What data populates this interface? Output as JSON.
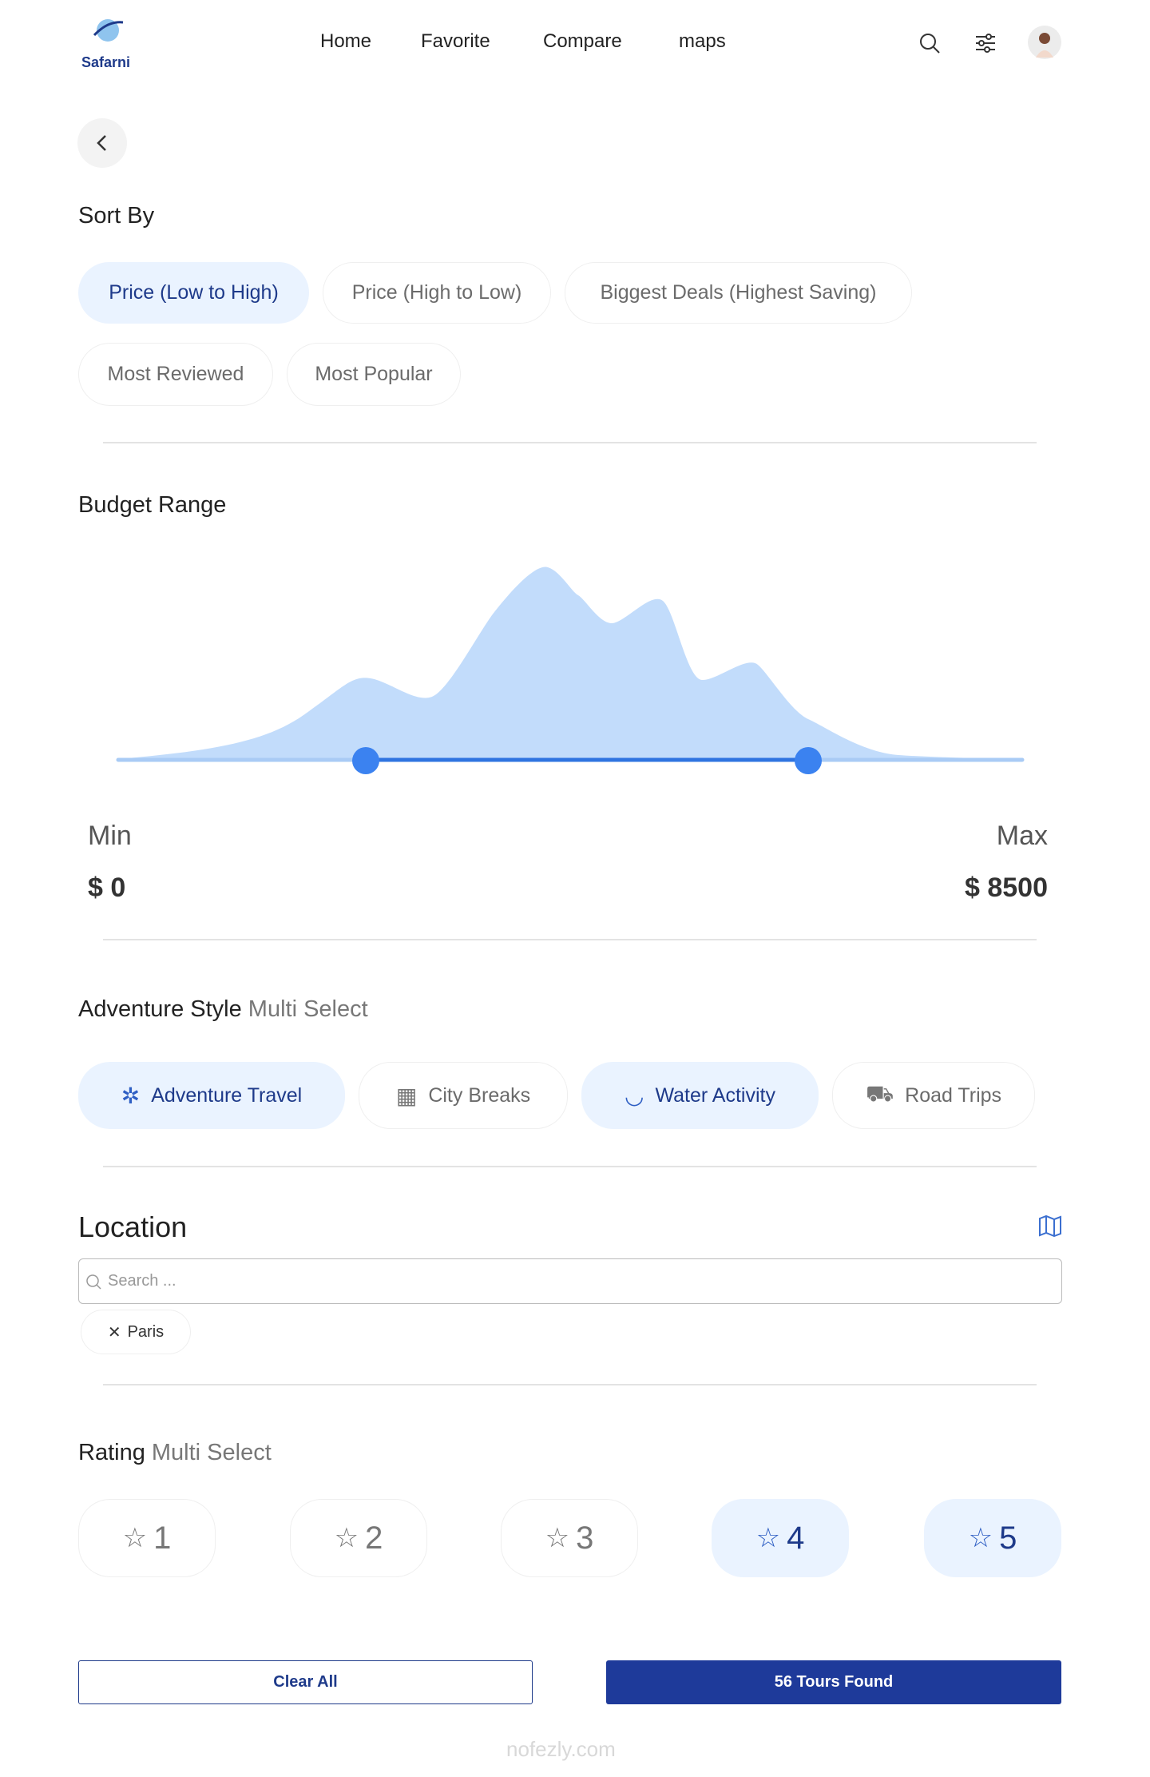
{
  "nav": {
    "logo": "Safarni",
    "links": [
      "Home",
      "Favorite",
      "Compare",
      "maps"
    ]
  },
  "sort": {
    "title": "Sort By",
    "options": [
      "Price (Low to High)",
      "Price (High to Low)",
      "Biggest Deals (Highest Saving)",
      "Most Reviewed",
      "Most Popular"
    ],
    "selected": [
      0
    ]
  },
  "budget": {
    "title": "Budget Range",
    "min_label": "Min",
    "max_label": "Max",
    "min_value": "$ 0",
    "max_value": "$ 8500"
  },
  "adventure": {
    "title": "Adventure Style",
    "hint": "Multi Select",
    "options": [
      "Adventure Travel",
      "City Breaks",
      "Water Activity",
      "Road Trips"
    ],
    "selected": [
      0,
      2
    ]
  },
  "location": {
    "title": "Location",
    "search_placeholder": "Search ...",
    "tags": [
      "Paris"
    ]
  },
  "rating": {
    "title": "Rating",
    "hint": "Multi Select",
    "options": [
      "1",
      "2",
      "3",
      "4",
      "5"
    ],
    "selected": [
      3,
      4
    ]
  },
  "actions": {
    "clear": "Clear All",
    "found": "56 Tours Found"
  },
  "watermark": "nofezly.com"
}
